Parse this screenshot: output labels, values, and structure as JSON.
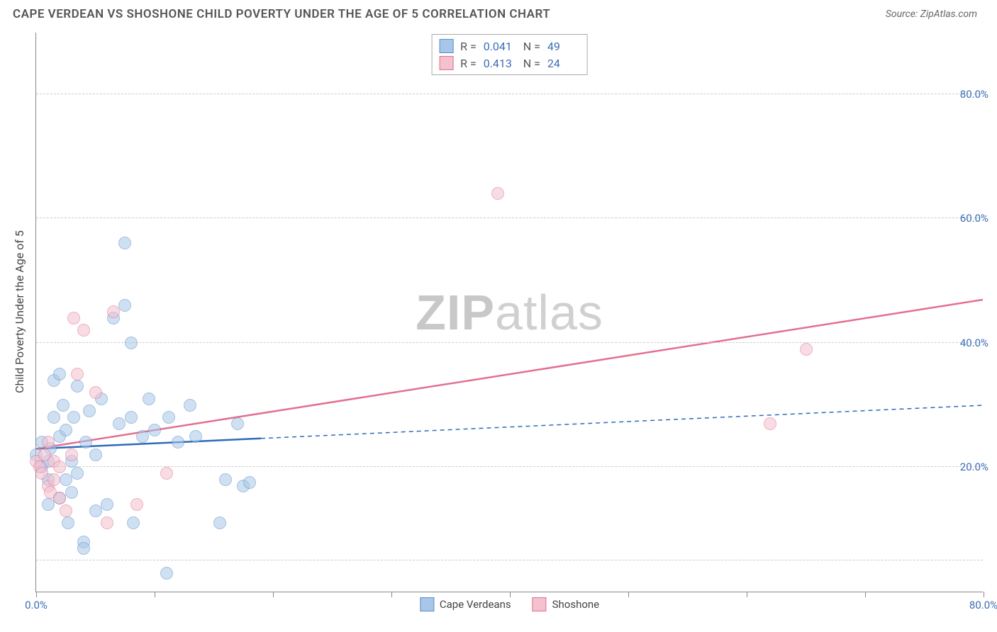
{
  "title": "CAPE VERDEAN VS SHOSHONE CHILD POVERTY UNDER THE AGE OF 5 CORRELATION CHART",
  "source_label": "Source: ",
  "source_value": "ZipAtlas.com",
  "y_axis_title": "Child Poverty Under the Age of 5",
  "watermark_bold": "ZIP",
  "watermark_light": "atlas",
  "chart": {
    "type": "scatter",
    "xlim": [
      0,
      80
    ],
    "ylim": [
      0,
      90
    ],
    "x_ticks": [
      0,
      10,
      20,
      30,
      40,
      50,
      60,
      70,
      80
    ],
    "x_tick_labels": {
      "0": "0.0%",
      "80": "80.0%"
    },
    "y_gridlines": [
      5,
      20,
      40,
      60,
      80
    ],
    "y_tick_labels": {
      "20": "20.0%",
      "40": "40.0%",
      "60": "60.0%",
      "80": "80.0%"
    },
    "background_color": "#ffffff",
    "grid_color": "#cccccc",
    "axis_color": "#888888",
    "tick_label_color": "#3b6db5",
    "marker_radius": 9,
    "marker_border_width": 1.5,
    "series": [
      {
        "name": "Cape Verdeans",
        "fill_color": "#a8c7e8",
        "border_color": "#5b8fc7",
        "fill_opacity": 0.55,
        "R": "0.041",
        "N": "49",
        "trend": {
          "x1": 0,
          "y1": 23,
          "x2": 80,
          "y2": 30,
          "solid_until_x": 19,
          "color": "#2e6bb8",
          "width": 2.5,
          "dash": "6,5"
        },
        "points": [
          [
            0,
            22
          ],
          [
            0.5,
            20
          ],
          [
            0.5,
            24
          ],
          [
            1,
            18
          ],
          [
            1,
            21
          ],
          [
            1,
            14
          ],
          [
            1.2,
            23
          ],
          [
            1.5,
            34
          ],
          [
            1.5,
            28
          ],
          [
            2,
            15
          ],
          [
            2,
            35
          ],
          [
            2,
            25
          ],
          [
            2.3,
            30
          ],
          [
            2.5,
            18
          ],
          [
            2.5,
            26
          ],
          [
            2.7,
            11
          ],
          [
            3,
            16
          ],
          [
            3,
            21
          ],
          [
            3.2,
            28
          ],
          [
            3.5,
            19
          ],
          [
            3.5,
            33
          ],
          [
            4,
            8
          ],
          [
            4,
            7
          ],
          [
            4.2,
            24
          ],
          [
            4.5,
            29
          ],
          [
            5,
            13
          ],
          [
            5,
            22
          ],
          [
            5.5,
            31
          ],
          [
            6,
            14
          ],
          [
            6.5,
            44
          ],
          [
            7,
            27
          ],
          [
            7.5,
            56
          ],
          [
            7.5,
            46
          ],
          [
            8,
            28
          ],
          [
            8,
            40
          ],
          [
            8.2,
            11
          ],
          [
            9,
            25
          ],
          [
            9.5,
            31
          ],
          [
            10,
            26
          ],
          [
            11,
            3
          ],
          [
            11.2,
            28
          ],
          [
            12,
            24
          ],
          [
            13,
            30
          ],
          [
            13.5,
            25
          ],
          [
            15.5,
            11
          ],
          [
            16,
            18
          ],
          [
            17,
            27
          ],
          [
            17.5,
            17
          ],
          [
            18,
            17.5
          ]
        ]
      },
      {
        "name": "Shoshone",
        "fill_color": "#f4c1ce",
        "border_color": "#e36f8f",
        "fill_opacity": 0.55,
        "R": "0.413",
        "N": "24",
        "trend": {
          "x1": 0,
          "y1": 23,
          "x2": 80,
          "y2": 47,
          "solid_until_x": 80,
          "color": "#e36f8f",
          "width": 2.5
        },
        "points": [
          [
            0,
            21
          ],
          [
            0.3,
            20
          ],
          [
            0.5,
            19
          ],
          [
            0.7,
            22
          ],
          [
            1,
            17
          ],
          [
            1,
            24
          ],
          [
            1.2,
            16
          ],
          [
            1.5,
            21
          ],
          [
            1.5,
            18
          ],
          [
            2,
            20
          ],
          [
            2,
            15
          ],
          [
            2.5,
            13
          ],
          [
            3,
            22
          ],
          [
            3.2,
            44
          ],
          [
            3.5,
            35
          ],
          [
            4,
            42
          ],
          [
            5,
            32
          ],
          [
            6,
            11
          ],
          [
            6.5,
            45
          ],
          [
            8.5,
            14
          ],
          [
            11,
            19
          ],
          [
            39,
            64
          ],
          [
            62,
            27
          ],
          [
            65,
            39
          ]
        ]
      }
    ]
  },
  "stats_labels": {
    "R": "R =",
    "N": "N ="
  },
  "legend": [
    {
      "label": "Cape Verdeans",
      "fill": "#a8c7e8",
      "border": "#5b8fc7"
    },
    {
      "label": "Shoshone",
      "fill": "#f4c1ce",
      "border": "#e36f8f"
    }
  ]
}
